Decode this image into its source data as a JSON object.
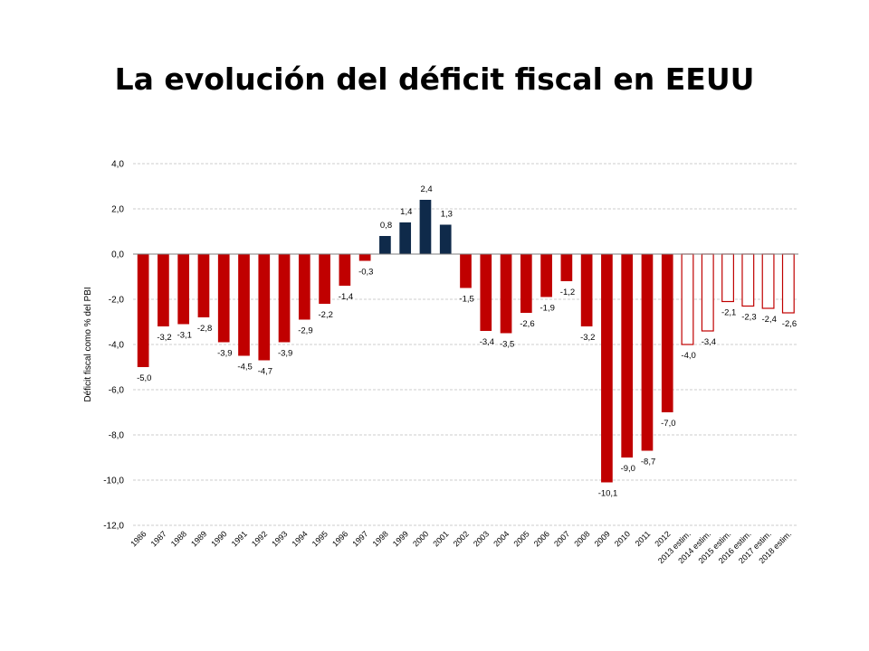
{
  "title": "La evolución del déficit fiscal en EEUU",
  "chart_data": {
    "type": "bar",
    "title": "",
    "xlabel": "",
    "ylabel": "Déficit fiscal como % del PBI",
    "ylim": [
      -12,
      4
    ],
    "yticks": [
      4,
      2,
      0,
      -2,
      -4,
      -6,
      -8,
      -10,
      -12
    ],
    "ytick_labels": [
      "4,0",
      "2,0",
      "0,0",
      "-2,0",
      "-4,0",
      "-6,0",
      "-8,0",
      "-10,0",
      "-12,0"
    ],
    "grid": true,
    "categories": [
      "1986",
      "1987",
      "1988",
      "1989",
      "1990",
      "1991",
      "1992",
      "1993",
      "1994",
      "1995",
      "1996",
      "1997",
      "1998",
      "1999",
      "2000",
      "2001",
      "2002",
      "2003",
      "2004",
      "2005",
      "2006",
      "2007",
      "2008",
      "2009",
      "2010",
      "2011",
      "2012",
      "2013 estim.",
      "2014 estim.",
      "2015 estim.",
      "2016 estim.",
      "2017 estim.",
      "2018 estim."
    ],
    "values": [
      -5.0,
      -3.2,
      -3.1,
      -2.8,
      -3.9,
      -4.5,
      -4.7,
      -3.9,
      -2.9,
      -2.2,
      -1.4,
      -0.3,
      0.8,
      1.4,
      2.4,
      1.3,
      -1.5,
      -3.4,
      -3.5,
      -2.6,
      -1.9,
      -1.2,
      -3.2,
      -10.1,
      -9.0,
      -8.7,
      -7.0,
      -4.0,
      -3.4,
      -2.1,
      -2.3,
      -2.4,
      -2.6
    ],
    "value_labels": [
      "-5,0",
      "-3,2",
      "-3,1",
      "-2,8",
      "-3,9",
      "-4,5",
      "-4,7",
      "-3,9",
      "-2,9",
      "-2,2",
      "-1,4",
      "-0,3",
      "0,8",
      "1,4",
      "2,4",
      "1,3",
      "-1,5",
      "-3,4",
      "-3,5",
      "-2,6",
      "-1,9",
      "-1,2",
      "-3,2",
      "-10,1",
      "-9,0",
      "-8,7",
      "-7,0",
      "-4,0",
      "-3,4",
      "-2,1",
      "-2,3",
      "-2,4",
      "-2,6"
    ],
    "estimated": [
      false,
      false,
      false,
      false,
      false,
      false,
      false,
      false,
      false,
      false,
      false,
      false,
      false,
      false,
      false,
      false,
      false,
      false,
      false,
      false,
      false,
      false,
      false,
      false,
      false,
      false,
      false,
      true,
      true,
      true,
      true,
      true,
      true
    ],
    "colors": {
      "deficit": "#c00000",
      "surplus": "#0f2a4a",
      "estimate_outline": "#c00000",
      "grid": "#bfbfbf",
      "axis": "#7f7f7f"
    }
  }
}
